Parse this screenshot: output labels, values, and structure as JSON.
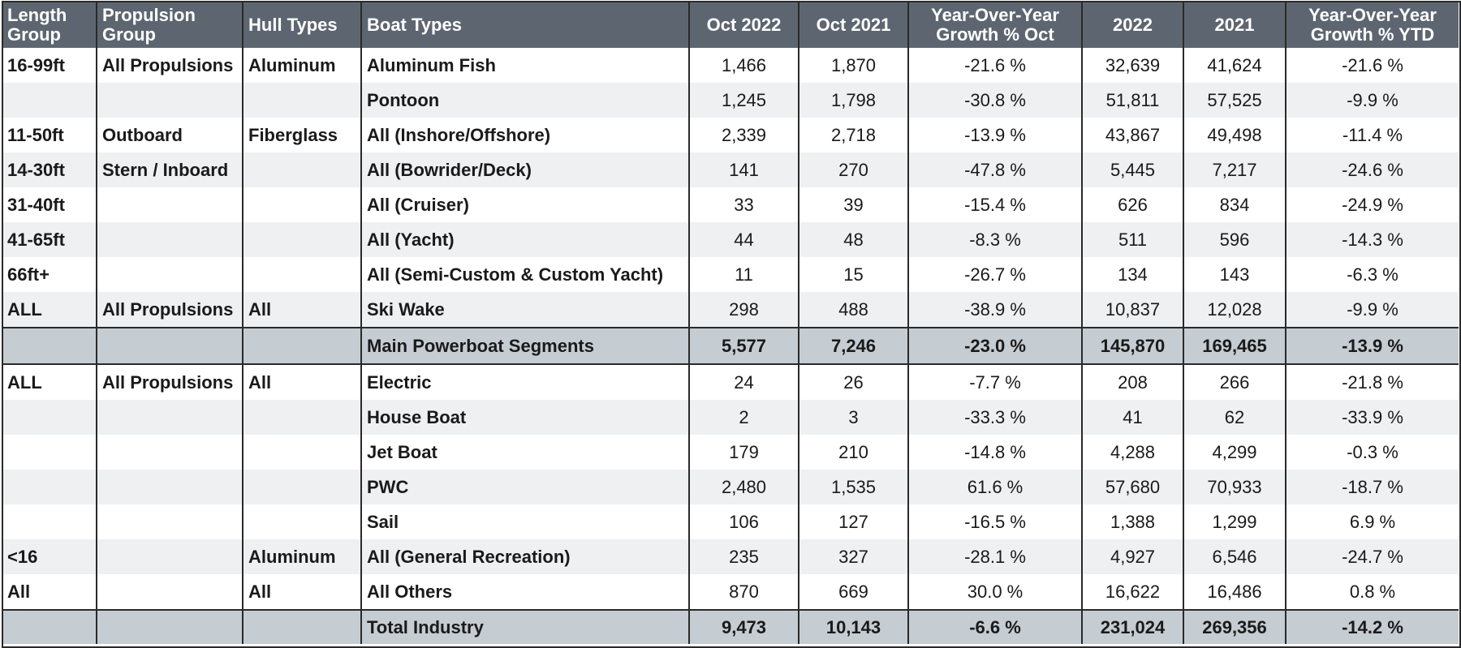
{
  "chart_data": {
    "type": "table",
    "columns": [
      "Length Group",
      "Propulsion Group",
      "Hull Types",
      "Boat Types",
      "Oct 2022",
      "Oct 2021",
      "Year-Over-Year Growth % Oct",
      "2022",
      "2021",
      "Year-Over-Year Growth % YTD"
    ],
    "rows": [
      {
        "kind": "data",
        "cells": [
          "16-99ft",
          "All Propulsions",
          "Aluminum",
          "Aluminum Fish",
          "1,466",
          "1,870",
          "-21.6 %",
          "32,639",
          "41,624",
          "-21.6 %"
        ]
      },
      {
        "kind": "data",
        "cells": [
          "",
          "",
          "",
          "Pontoon",
          "1,245",
          "1,798",
          "-30.8 %",
          "51,811",
          "57,525",
          "-9.9 %"
        ]
      },
      {
        "kind": "data",
        "cells": [
          "11-50ft",
          "Outboard",
          "Fiberglass",
          "All (Inshore/Offshore)",
          "2,339",
          "2,718",
          "-13.9 %",
          "43,867",
          "49,498",
          "-11.4 %"
        ]
      },
      {
        "kind": "data",
        "cells": [
          "14-30ft",
          "Stern / Inboard",
          "",
          "All (Bowrider/Deck)",
          "141",
          "270",
          "-47.8 %",
          "5,445",
          "7,217",
          "-24.6 %"
        ]
      },
      {
        "kind": "data",
        "cells": [
          "31-40ft",
          "",
          "",
          "All (Cruiser)",
          "33",
          "39",
          "-15.4 %",
          "626",
          "834",
          "-24.9 %"
        ]
      },
      {
        "kind": "data",
        "cells": [
          "41-65ft",
          "",
          "",
          "All (Yacht)",
          "44",
          "48",
          "-8.3 %",
          "511",
          "596",
          "-14.3 %"
        ]
      },
      {
        "kind": "data",
        "cells": [
          "66ft+",
          "",
          "",
          "All (Semi-Custom & Custom Yacht)",
          "11",
          "15",
          "-26.7 %",
          "134",
          "143",
          "-6.3 %"
        ]
      },
      {
        "kind": "data",
        "cells": [
          "ALL",
          "All Propulsions",
          "All",
          "Ski Wake",
          "298",
          "488",
          "-38.9 %",
          "10,837",
          "12,028",
          "-9.9 %"
        ]
      },
      {
        "kind": "subtotal",
        "cells": [
          "",
          "",
          "",
          "Main Powerboat Segments",
          "5,577",
          "7,246",
          "-23.0 %",
          "145,870",
          "169,465",
          "-13.9 %"
        ]
      },
      {
        "kind": "data",
        "cells": [
          "ALL",
          "All Propulsions",
          "All",
          "Electric",
          "24",
          "26",
          "-7.7 %",
          "208",
          "266",
          "-21.8 %"
        ]
      },
      {
        "kind": "data",
        "cells": [
          "",
          "",
          "",
          "House Boat",
          "2",
          "3",
          "-33.3 %",
          "41",
          "62",
          "-33.9 %"
        ]
      },
      {
        "kind": "data",
        "cells": [
          "",
          "",
          "",
          "Jet Boat",
          "179",
          "210",
          "-14.8 %",
          "4,288",
          "4,299",
          "-0.3 %"
        ]
      },
      {
        "kind": "data",
        "cells": [
          "",
          "",
          "",
          "PWC",
          "2,480",
          "1,535",
          "61.6 %",
          "57,680",
          "70,933",
          "-18.7 %"
        ]
      },
      {
        "kind": "data",
        "cells": [
          "",
          "",
          "",
          "Sail",
          "106",
          "127",
          "-16.5 %",
          "1,388",
          "1,299",
          "6.9 %"
        ]
      },
      {
        "kind": "data",
        "cells": [
          "<16",
          "",
          "Aluminum",
          "All (General Recreation)",
          "235",
          "327",
          "-28.1 %",
          "4,927",
          "6,546",
          "-24.7 %"
        ]
      },
      {
        "kind": "data",
        "cells": [
          "All",
          "",
          "All",
          "All Others",
          "870",
          "669",
          "30.0 %",
          "16,622",
          "16,486",
          "0.8 %"
        ]
      },
      {
        "kind": "total",
        "cells": [
          "",
          "",
          "",
          "Total Industry",
          "9,473",
          "10,143",
          "-6.6 %",
          "231,024",
          "269,356",
          "-14.2 %"
        ]
      }
    ],
    "colors": {
      "header_bg": "#5d6670",
      "header_text": "#ffffff",
      "stripe": "#eef0f1",
      "summary_bg": "#c5ccd2",
      "border": "#2a2a2a"
    }
  }
}
